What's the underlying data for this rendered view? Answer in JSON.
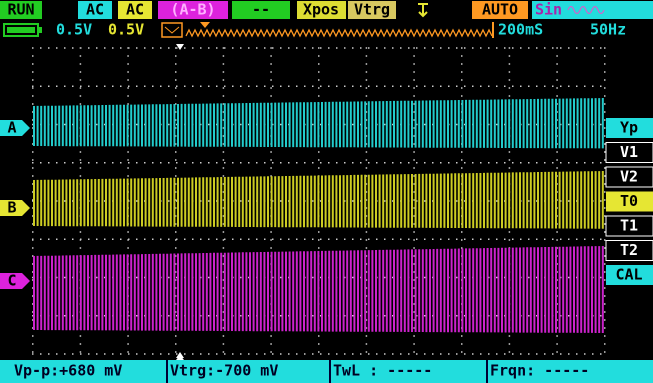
{
  "top_bar": [
    "RUN",
    "AC",
    "AC",
    "(A-B)",
    "--",
    "Xpos",
    "Vtrg",
    "AUTO",
    "Sin"
  ],
  "status_row": {
    "ch_a_scale": "0.5V",
    "ch_b_scale": "0.5V",
    "timebase": "200mS",
    "frequency": "50Hz"
  },
  "channel_markers": [
    "A",
    "B",
    "C"
  ],
  "side_menu": [
    "Yp",
    "V1",
    "V2",
    "T0",
    "T1",
    "T2",
    "CAL"
  ],
  "bottom_bar": [
    "Vp-p:+680 mV",
    "Vtrg:-700 mV",
    "TwL : -----",
    "Frqn: -----"
  ]
}
